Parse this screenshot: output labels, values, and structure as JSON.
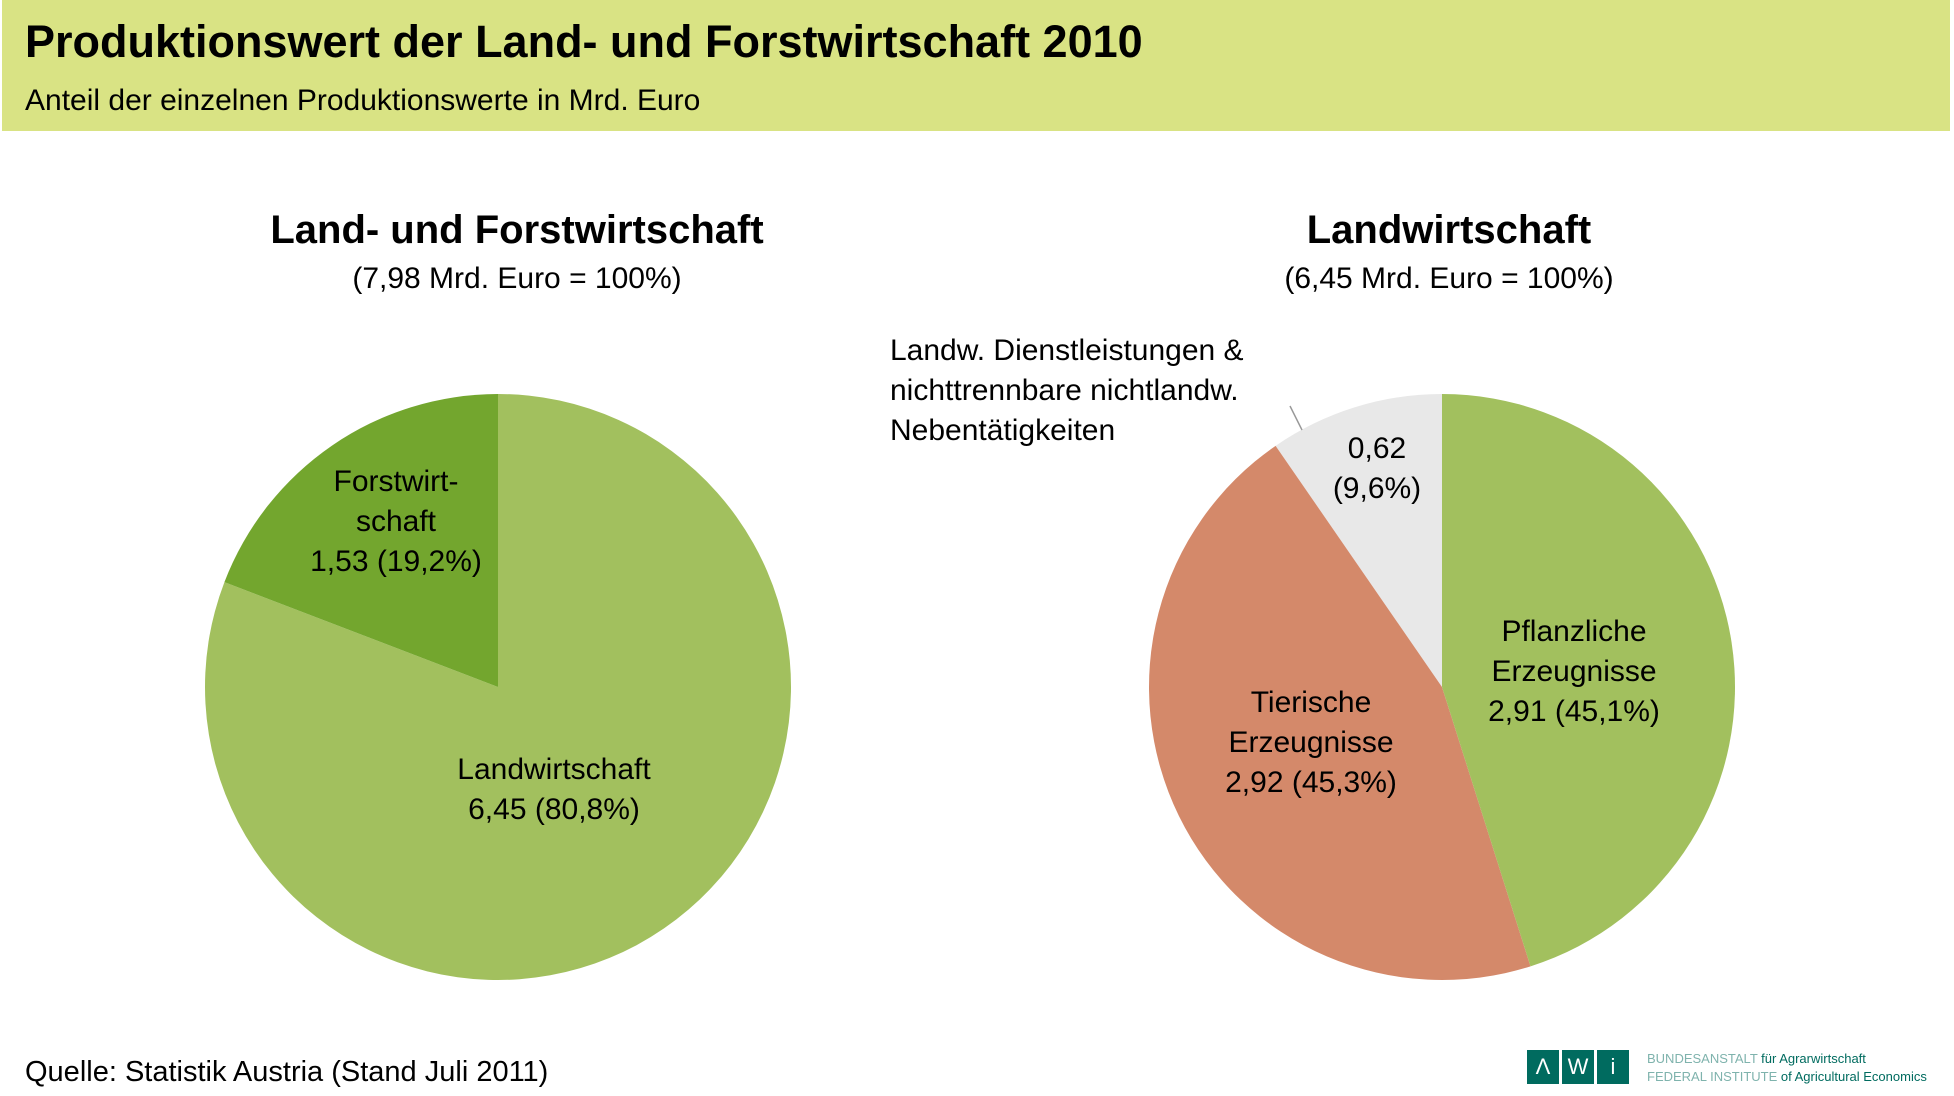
{
  "header": {
    "title": "Produktionswert der Land- und Forstwirtschaft 2010",
    "subtitle": "Anteil der einzelnen Produktionswerte in Mrd. Euro"
  },
  "chart_data": [
    {
      "type": "pie",
      "title": "Land- und Forstwirtschaft",
      "subtitle": "(7,98 Mrd. Euro = 100%)",
      "slices": [
        {
          "name": "Landwirtschaft",
          "value": 6.45,
          "percent": 80.8,
          "label_lines": [
            "Landwirtschaft",
            "6,45 (80,8%)"
          ],
          "color": "#a2c05e"
        },
        {
          "name": "Forstwirtschaft",
          "value": 1.53,
          "percent": 19.2,
          "label_lines": [
            "Forstwirt-",
            "schaft",
            "1,53 (19,2%)"
          ],
          "color": "#73a62e"
        }
      ]
    },
    {
      "type": "pie",
      "title": "Landwirtschaft",
      "subtitle": "(6,45 Mrd. Euro = 100%)",
      "slices": [
        {
          "name": "Pflanzliche Erzeugnisse",
          "value": 2.91,
          "percent": 45.1,
          "label_lines": [
            "Pflanzliche",
            "Erzeugnisse",
            "2,91 (45,1%)"
          ],
          "color": "#a2c05e"
        },
        {
          "name": "Tierische Erzeugnisse",
          "value": 2.92,
          "percent": 45.3,
          "label_lines": [
            "Tierische",
            "Erzeugnisse",
            "2,92 (45,3%)"
          ],
          "color": "#d4896a"
        },
        {
          "name": "Landw. Dienstleistungen & nichttrennbare nichtlandw. Nebentätigkeiten",
          "value": 0.62,
          "percent": 9.6,
          "label_lines": [
            "0,62",
            "(9,6%)"
          ],
          "color": "#e8e8e8"
        }
      ],
      "callout_lines": [
        "Landw. Dienstleistungen &",
        "nichttrennbare nichtlandw.",
        "Nebentätigkeiten"
      ]
    }
  ],
  "footer": {
    "source": "Quelle: Statistik Austria (Stand Juli 2011)",
    "logo": {
      "letters": [
        "Λ",
        "W",
        "i"
      ],
      "line1_light": "BUNDESANSTALT ",
      "line1": "für Agrarwirtschaft",
      "line2_light": "FEDERAL INSTITUTE ",
      "line2": "of Agricultural Economics"
    }
  }
}
